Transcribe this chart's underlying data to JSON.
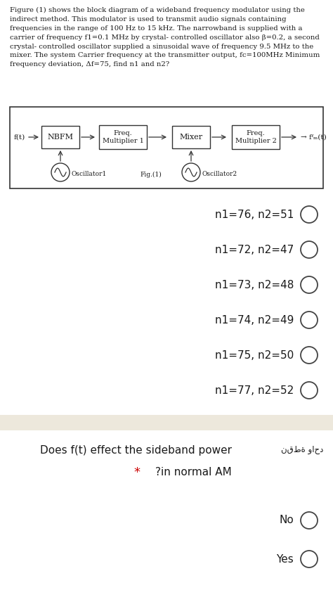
{
  "bg_color": "#ffffff",
  "paragraph_text": "Figure (1) shows the block diagram of a wideband frequency modulator using the\nindirect method. This modulator is used to transmit audio signals containing\nfrequencies in the range of 100 Hz to 15 kHz. The narrowband is supplied with a\ncarrier of frequency f1=0.1 MHz by crystal- controlled oscillator also β=0.2, a second\ncrystal- controlled oscillator supplied a sinusoidal wave of frequency 9.5 MHz to the\nmixer. The system Carrier frequency at the transmitter output, fc=100MHz Minimum\nfrequency deviation, Δf=75, find n1 and n2?",
  "options_section1": [
    "n1=76, n2=51",
    "n1=72, n2=47",
    "n1=73, n2=48",
    "n1=74, n2=49",
    "n1=75, n2=50",
    "n1=77, n2=52"
  ],
  "question2_arabic": "نقطة واحد",
  "question2_text": "Does f(t) effect the sideband power",
  "question2_sub": "?in normal AM",
  "options_section2": [
    "No",
    "Yes"
  ],
  "separator_color": "#ede8dc",
  "radio_color": "#444444",
  "text_color": "#1a1a1a",
  "red_color": "#cc0000",
  "diagram_color": "#333333"
}
